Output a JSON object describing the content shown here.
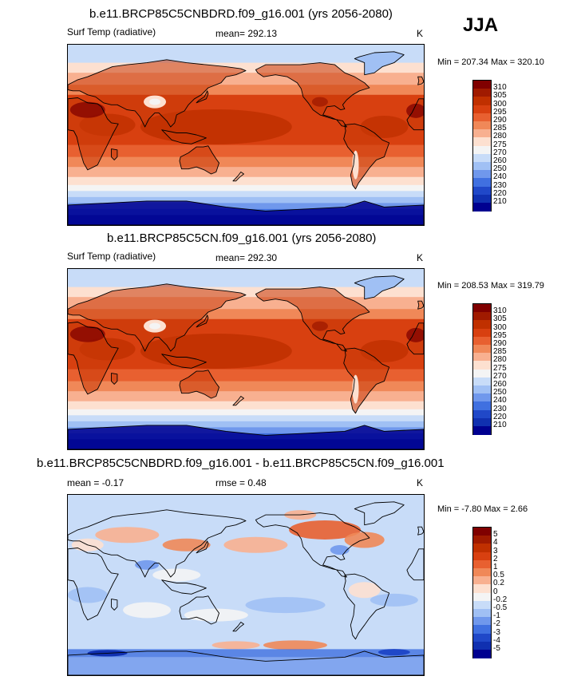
{
  "season": "JJA",
  "panels": [
    {
      "title": "b.e11.BRCP85C5CNBDRD.f09_g16.001 (yrs 2056-2080)",
      "variable": "Surf Temp (radiative)",
      "stat1": "mean= 292.13",
      "stat2": "",
      "units": "K",
      "minmax": "Min = 207.34 Max = 320.10",
      "kind": "abs"
    },
    {
      "title": "b.e11.BRCP85C5CN.f09_g16.001 (yrs 2056-2080)",
      "variable": "Surf Temp (radiative)",
      "stat1": "mean= 292.30",
      "stat2": "",
      "units": "K",
      "minmax": "Min = 208.53 Max = 319.79",
      "kind": "abs"
    },
    {
      "title": "b.e11.BRCP85C5CNBDRD.f09_g16.001 - b.e11.BRCP85C5CN.f09_g16.001",
      "variable": "",
      "stat1": "mean =  -0.17",
      "stat2": "rmse =   0.48",
      "units": "K",
      "minmax": "Min =  -7.80 Max =   2.66",
      "kind": "diff"
    }
  ],
  "colorbars": {
    "abs": {
      "labels": [
        "310",
        "305",
        "300",
        "295",
        "290",
        "285",
        "280",
        "275",
        "270",
        "260",
        "250",
        "240",
        "230",
        "220",
        "210"
      ],
      "colors": [
        "#800000",
        "#a01a00",
        "#c03000",
        "#d84010",
        "#e86030",
        "#f08858",
        "#f8b090",
        "#fde0d0",
        "#f4f4f4",
        "#c8dcf8",
        "#a0c0f4",
        "#7098ec",
        "#4070e0",
        "#2048c8",
        "#1030b0",
        "#000090"
      ]
    },
    "diff": {
      "labels": [
        "5",
        "4",
        "3",
        "2",
        "1",
        "0.5",
        "0.2",
        "0",
        "-0.2",
        "-0.5",
        "-1",
        "-2",
        "-3",
        "-4",
        "-5"
      ],
      "colors": [
        "#800000",
        "#a01a00",
        "#c03000",
        "#d84010",
        "#e86030",
        "#f08858",
        "#f8b090",
        "#fde0d0",
        "#f4f4f4",
        "#c8dcf8",
        "#a0c0f4",
        "#7098ec",
        "#4070e0",
        "#2048c8",
        "#1030b0",
        "#000090"
      ]
    }
  }
}
